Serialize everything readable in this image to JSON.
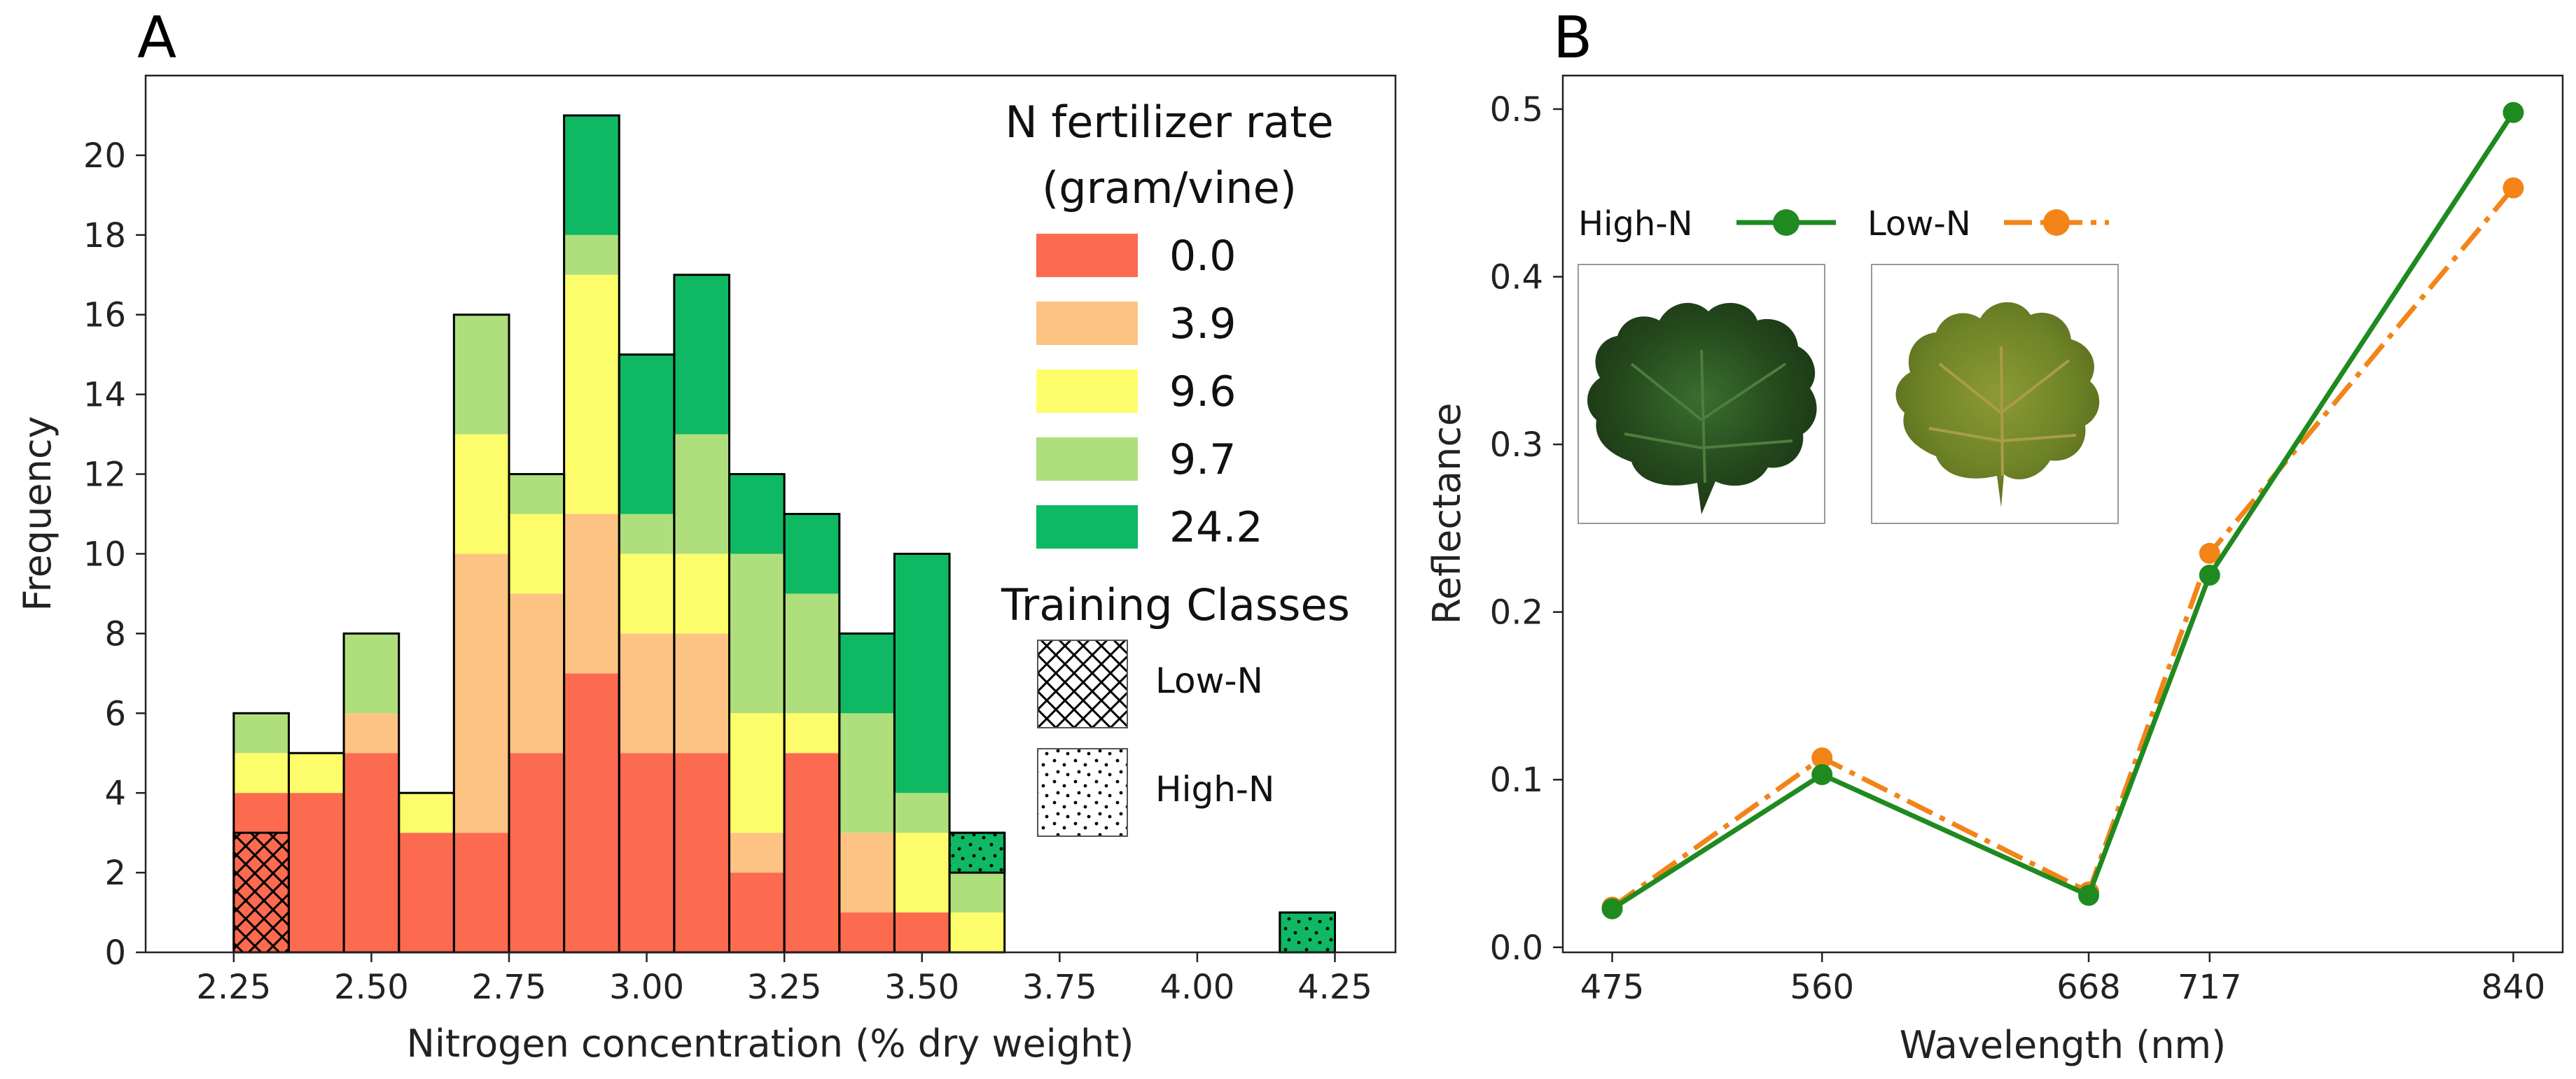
{
  "colors": {
    "rate_0_0": "#fc6a4f",
    "rate_3_9": "#fdc382",
    "rate_9_6": "#fdfd6b",
    "rate_9_7": "#aedf7c",
    "rate_24_2": "#0fb862",
    "high_n_line": "#1f8a1f",
    "low_n_line": "#f28418"
  },
  "chart_data": [
    {
      "panel": "A",
      "type": "bar",
      "stacked": true,
      "xlabel": "Nitrogen concentration (% dry weight)",
      "ylabel": "Frequency",
      "xlim": [
        2.09,
        4.36
      ],
      "ylim": [
        0,
        22
      ],
      "x_ticks": [
        "2.25",
        "2.50",
        "2.75",
        "3.00",
        "3.25",
        "3.50",
        "3.75",
        "4.00",
        "4.25"
      ],
      "y_ticks": [
        "0",
        "2",
        "4",
        "6",
        "8",
        "10",
        "12",
        "14",
        "16",
        "18",
        "20"
      ],
      "bin_width": 0.1,
      "bin_starts": [
        2.25,
        2.35,
        2.45,
        2.55,
        2.65,
        2.75,
        2.85,
        2.95,
        3.05,
        3.15,
        3.25,
        3.35,
        3.45,
        3.55,
        4.15
      ],
      "series": [
        {
          "name": "0.0",
          "color_key": "rate_0_0",
          "values": [
            4,
            4,
            5,
            3,
            3,
            5,
            7,
            5,
            5,
            2,
            5,
            1,
            1,
            0,
            0
          ]
        },
        {
          "name": "3.9",
          "color_key": "rate_3_9",
          "values": [
            0,
            0,
            1,
            0,
            7,
            4,
            4,
            3,
            3,
            1,
            0,
            2,
            0,
            0,
            0
          ]
        },
        {
          "name": "9.6",
          "color_key": "rate_9_6",
          "values": [
            1,
            1,
            0,
            1,
            3,
            2,
            6,
            2,
            2,
            3,
            1,
            0,
            2,
            1,
            0
          ]
        },
        {
          "name": "9.7",
          "color_key": "rate_9_7",
          "values": [
            1,
            0,
            2,
            0,
            3,
            1,
            1,
            1,
            3,
            4,
            3,
            3,
            1,
            1,
            0
          ]
        },
        {
          "name": "24.2",
          "color_key": "rate_24_2",
          "values": [
            0,
            0,
            0,
            0,
            0,
            0,
            3,
            4,
            4,
            2,
            2,
            2,
            6,
            1,
            1
          ]
        }
      ],
      "training_classes": [
        {
          "name": "Low-N",
          "pattern": "crosshatch",
          "bins": [
            2.25
          ],
          "frequency": [
            3
          ]
        },
        {
          "name": "High-N",
          "pattern": "dots",
          "bins": [
            3.55,
            4.15
          ],
          "frequency": [
            1,
            1
          ]
        }
      ],
      "legend": {
        "title_line1": "N fertilizer rate",
        "title_line2": "(gram/vine)",
        "entries": [
          "0.0",
          "3.9",
          "9.6",
          "9.7",
          "24.2"
        ],
        "training_title": "Training Classes",
        "training_entries": [
          "Low-N",
          "High-N"
        ],
        "position": "right"
      }
    },
    {
      "panel": "B",
      "type": "line",
      "xlabel": "Wavelength (nm)",
      "ylabel": "Reflectance",
      "xlim": [
        455,
        860
      ],
      "ylim": [
        -0.003,
        0.52
      ],
      "x_ticks": [
        "475",
        "560",
        "668",
        "717",
        "840"
      ],
      "y_ticks": [
        "0.0",
        "0.1",
        "0.2",
        "0.3",
        "0.4",
        "0.5"
      ],
      "x": [
        475,
        560,
        668,
        717,
        840
      ],
      "series": [
        {
          "name": "High-N",
          "color_key": "high_n_line",
          "style": "solid",
          "values": [
            0.023,
            0.103,
            0.031,
            0.222,
            0.498
          ]
        },
        {
          "name": "Low-N",
          "color_key": "low_n_line",
          "style": "dashdot",
          "values": [
            0.024,
            0.113,
            0.033,
            0.235,
            0.453
          ]
        }
      ],
      "legend": {
        "entries": [
          "High-N",
          "Low-N"
        ],
        "position": "top-left"
      },
      "insets": [
        "High-N leaf",
        "Low-N leaf"
      ]
    }
  ]
}
